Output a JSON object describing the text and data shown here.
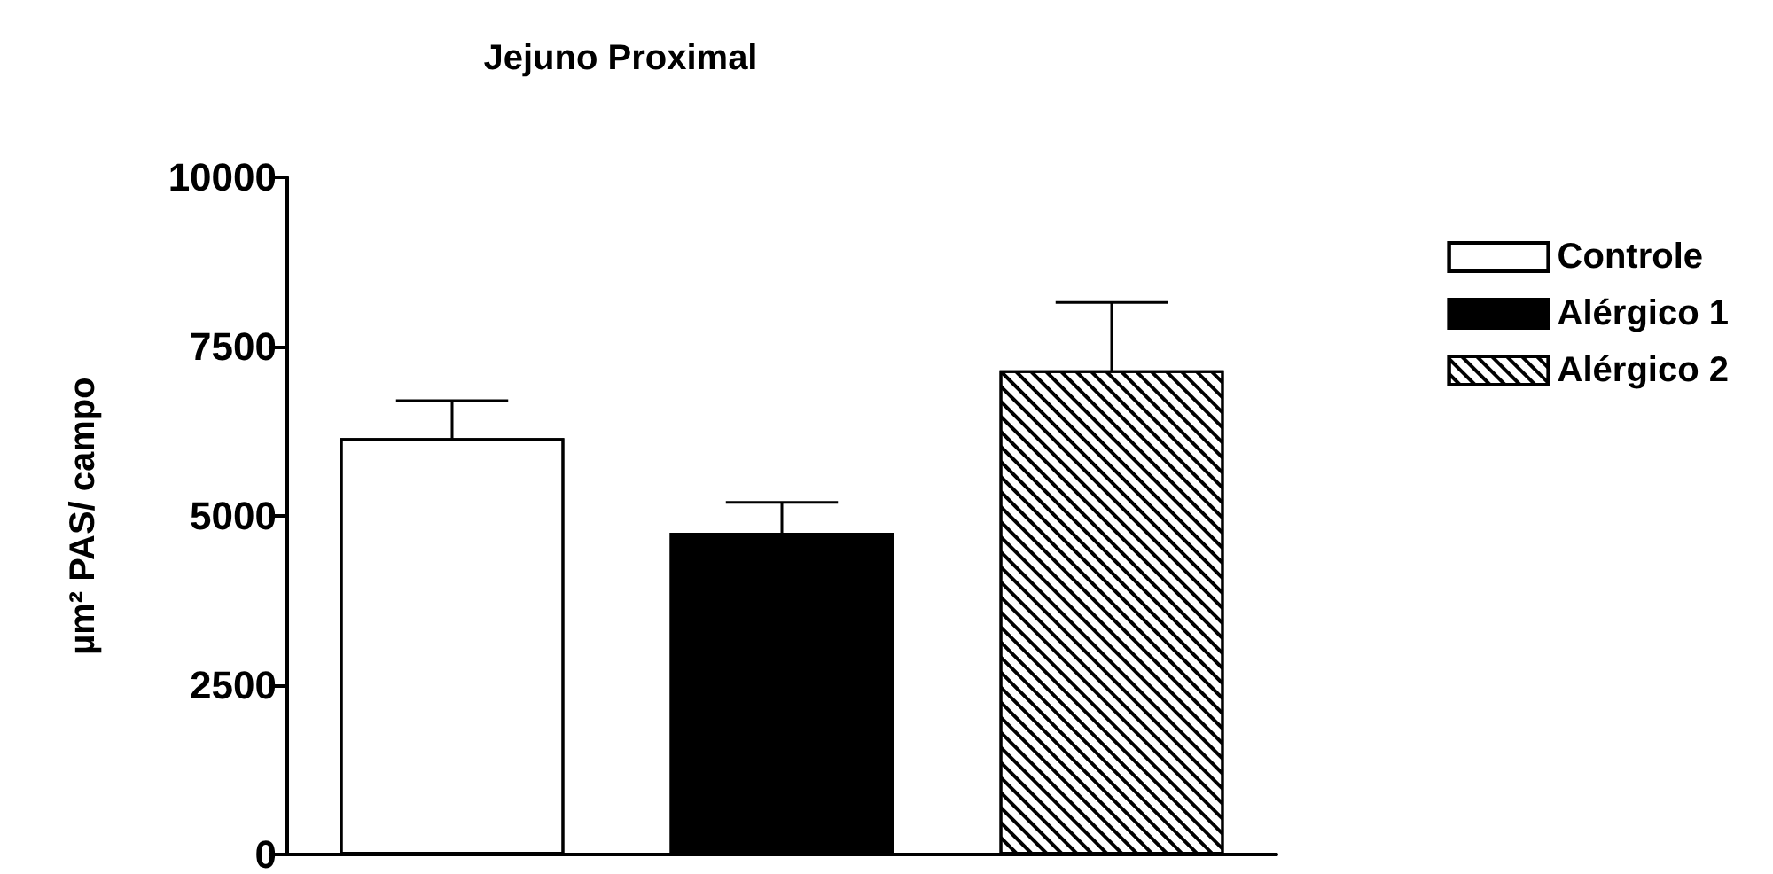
{
  "chart_data": {
    "type": "bar",
    "title": "Jejuno Proximal",
    "ylabel": "µm² PAS/ campo",
    "categories": [
      null,
      null,
      null
    ],
    "series": [
      {
        "name": "Controle",
        "color": "#ffffff",
        "values": [
          6150,
          null,
          null
        ],
        "errors": [
          550,
          null,
          null
        ]
      },
      {
        "name": "Alérgico 1",
        "color": "#000000",
        "values": [
          null,
          4750,
          null
        ],
        "errors": [
          null,
          450,
          null
        ]
      },
      {
        "name": "Alérgico 2",
        "color": "#ffffff",
        "values": [
          null,
          null,
          7150
        ],
        "errors": [
          null,
          null,
          1000
        ]
      }
    ],
    "ylim": [
      0,
      10000
    ],
    "yticks": [
      0,
      2500,
      5000,
      7500,
      10000
    ],
    "grid": false,
    "legend": "right"
  }
}
